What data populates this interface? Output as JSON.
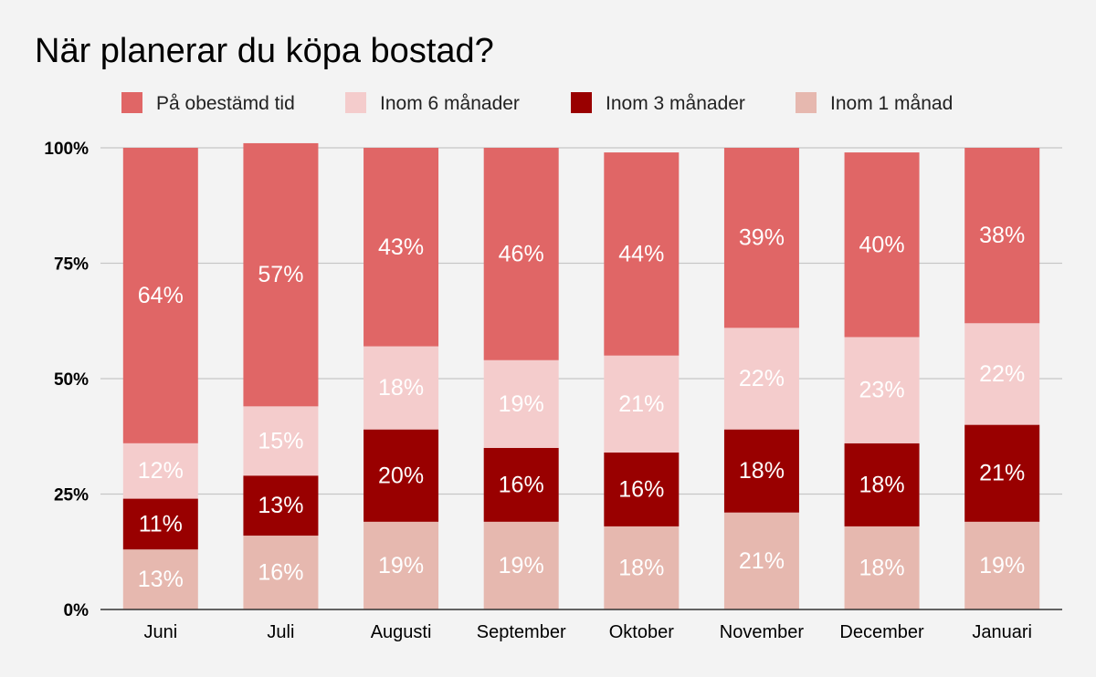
{
  "chart_data": {
    "type": "bar",
    "stacked": true,
    "percent_stacked": true,
    "title": "När planerar du köpa bostad?",
    "xlabel": "",
    "ylabel": "",
    "ylim": [
      0,
      100
    ],
    "y_ticks": [
      "0%",
      "25%",
      "50%",
      "75%",
      "100%"
    ],
    "grid": true,
    "legend_position": "top",
    "categories": [
      "Juni",
      "Juli",
      "Augusti",
      "September",
      "Oktober",
      "November",
      "December",
      "Januari"
    ],
    "series": [
      {
        "name": "Inom 1 månad",
        "color": "#e6b8af",
        "label_color": "#ffffff",
        "values": [
          13,
          16,
          19,
          19,
          18,
          21,
          18,
          19
        ]
      },
      {
        "name": "Inom 3 månader",
        "color": "#990000",
        "label_color": "#ffffff",
        "values": [
          11,
          13,
          20,
          16,
          16,
          18,
          18,
          21
        ]
      },
      {
        "name": "Inom 6 månader",
        "color": "#f4cccc",
        "label_color": "#ffffff",
        "values": [
          12,
          15,
          18,
          19,
          21,
          22,
          23,
          22
        ]
      },
      {
        "name": "På obestämd tid",
        "color": "#e06666",
        "label_color": "#ffffff",
        "values": [
          64,
          57,
          43,
          46,
          44,
          39,
          40,
          38
        ]
      }
    ],
    "legend_order": [
      "På obestämd tid",
      "Inom 6 månader",
      "Inom 3 månader",
      "Inom 1 månad"
    ]
  }
}
